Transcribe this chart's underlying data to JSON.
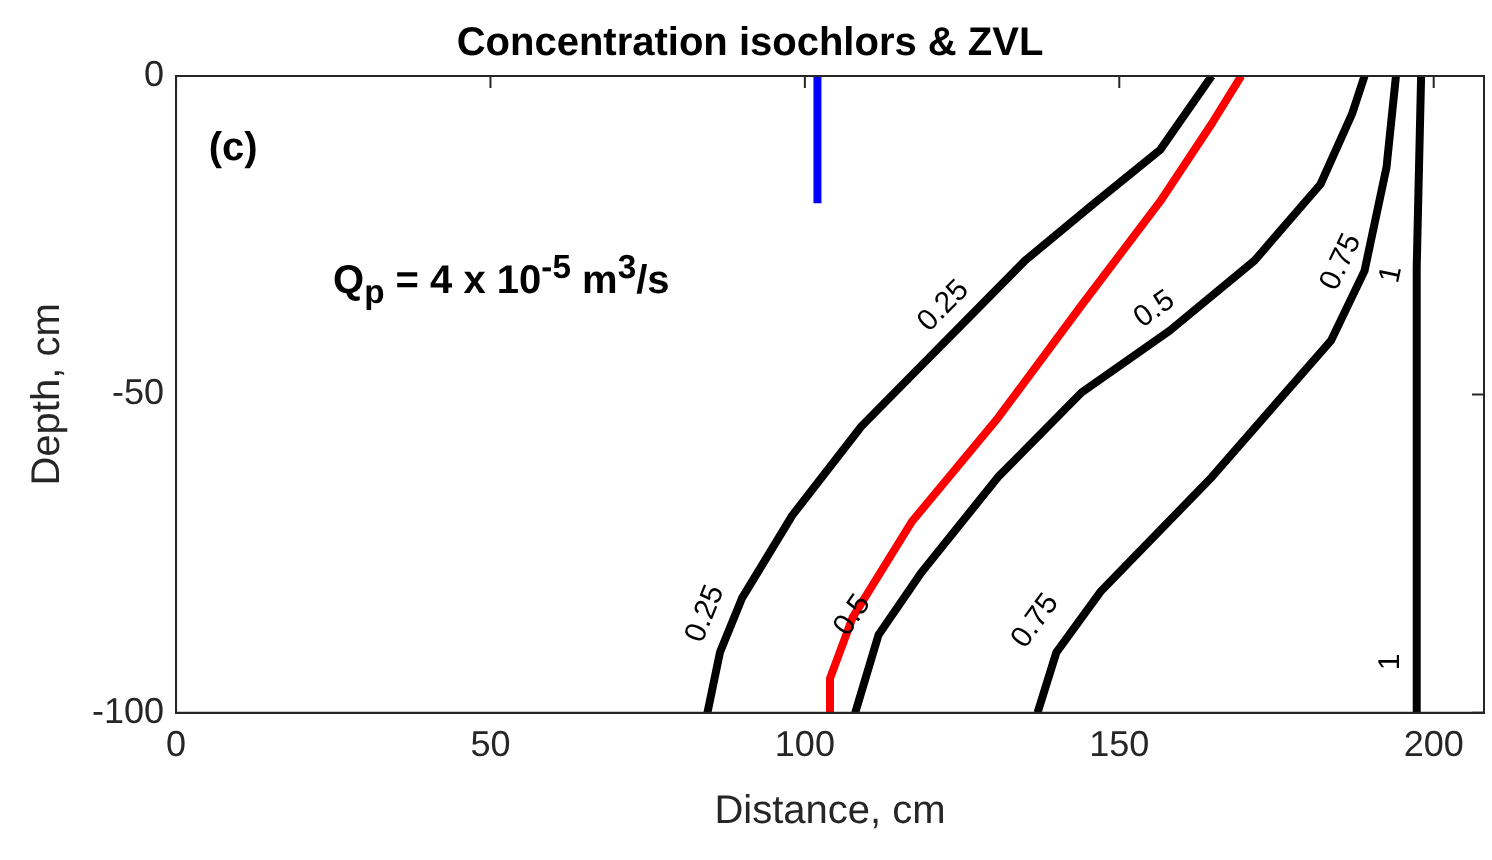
{
  "chart_data": {
    "type": "line",
    "title": "Concentration isochlors & ZVL",
    "xlabel": "Distance, cm",
    "ylabel": "Depth, cm",
    "xlim": [
      0,
      208
    ],
    "ylim": [
      -100,
      0
    ],
    "xticks": [
      0,
      50,
      100,
      150,
      200
    ],
    "yticks": [
      -100,
      -50,
      0
    ],
    "series": [
      {
        "color": "#000000",
        "x": [
          84.5,
          86.5,
          90,
          98,
          109,
          117,
          125,
          135,
          146,
          156.5,
          164.7
        ],
        "values": [
          -100,
          -90.5,
          -82,
          -69,
          -55,
          -47,
          -39,
          -29,
          -20,
          -11.6,
          0
        ]
      },
      {
        "color": "#ff0000",
        "x": [
          104,
          104,
          107.6,
          117,
          130.7,
          144,
          156.5,
          164.7,
          169.4
        ],
        "values": [
          -100,
          -94.6,
          -85,
          -70,
          -53.7,
          -36,
          -19.7,
          -7.5,
          0
        ]
      },
      {
        "color": "#000000",
        "x": [
          108,
          111.7,
          118.5,
          130.7,
          144,
          158,
          171.5,
          182,
          187,
          189
        ],
        "values": [
          -100,
          -87.8,
          -78,
          -63,
          -49.7,
          -40,
          -29,
          -17,
          -6,
          0
        ]
      },
      {
        "color": "#000000",
        "x": [
          137,
          140,
          147,
          164.7,
          183.7,
          189,
          192.5,
          194
        ],
        "values": [
          -100,
          -90.5,
          -81,
          -63,
          -41.5,
          -30.6,
          -14.3,
          0
        ]
      },
      {
        "color": "#000000",
        "x": [
          197.3,
          197.3,
          198
        ],
        "values": [
          -100,
          -30,
          0
        ]
      },
      {
        "color": "#0000ff",
        "x": [
          102,
          102
        ],
        "values": [
          -20,
          0
        ]
      }
    ],
    "annotations": [
      "(c)",
      "Q$_{p}$ = 4 x 10$^{-5}$ m$^{3}$/s",
      {
        "text": "0.25",
        "x": 125,
        "y": -39
      },
      {
        "text": "0.25",
        "x": 88,
        "y": -86
      },
      {
        "text": "0.5",
        "x": 158,
        "y": -40
      },
      {
        "text": "0.5",
        "x": 111,
        "y": -87
      },
      {
        "text": "0.75",
        "x": 189,
        "y": -31
      },
      {
        "text": "0.75",
        "x": 140,
        "y": -88
      },
      {
        "text": "1",
        "x": 197.3,
        "y": -32
      },
      {
        "text": "1",
        "x": 197.3,
        "y": -92
      }
    ]
  }
}
